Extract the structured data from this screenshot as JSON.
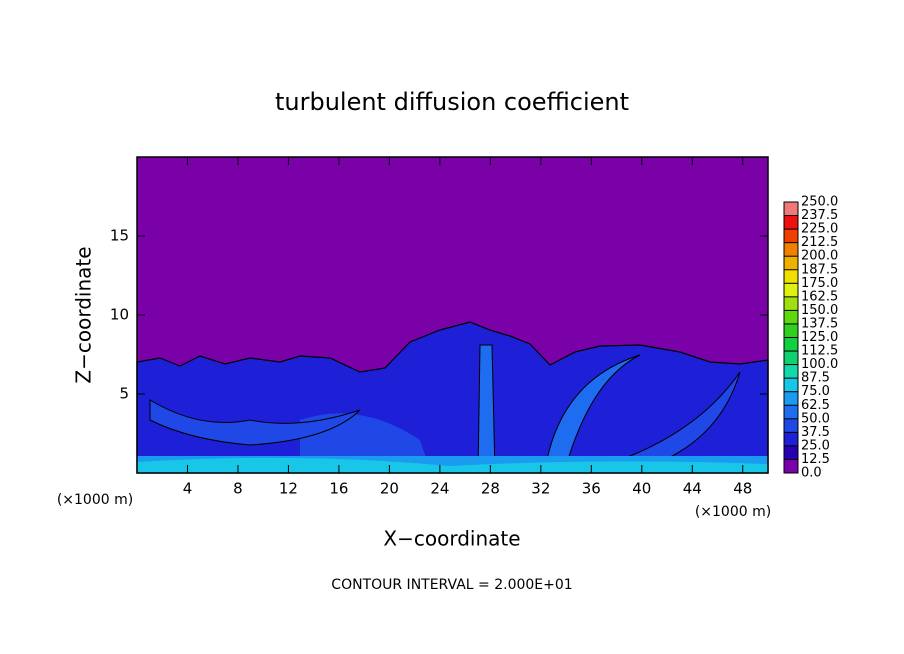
{
  "chart_data": {
    "type": "contour",
    "title": "turbulent diffusion coefficient",
    "xlabel": "X−coordinate",
    "ylabel": "Z−coordinate",
    "x_unit_label": "(×1000 m)",
    "annotation": "CONTOUR INTERVAL = 2.000E+01",
    "xlim": [
      0,
      50
    ],
    "ylim": [
      0,
      20
    ],
    "xticks": [
      4,
      8,
      12,
      16,
      20,
      24,
      28,
      32,
      36,
      40,
      44,
      48
    ],
    "yticks": [
      5,
      10,
      15
    ],
    "colorbar": {
      "ticks": [
        {
          "value": 0,
          "label": "0.0"
        },
        {
          "value": 12.5,
          "label": "12.5"
        },
        {
          "value": 25,
          "label": "25.0"
        },
        {
          "value": 37.5,
          "label": "37.5"
        },
        {
          "value": 50,
          "label": "50.0"
        },
        {
          "value": 62.5,
          "label": "62.5"
        },
        {
          "value": 75,
          "label": "75.0"
        },
        {
          "value": 87.5,
          "label": "87.5"
        },
        {
          "value": 100,
          "label": "100.0"
        },
        {
          "value": 112.5,
          "label": "112.5"
        },
        {
          "value": 125,
          "label": "125.0"
        },
        {
          "value": 137.5,
          "label": "137.5"
        },
        {
          "value": 150,
          "label": "150.0"
        },
        {
          "value": 162.5,
          "label": "162.5"
        },
        {
          "value": 175,
          "label": "175.0"
        },
        {
          "value": 187.5,
          "label": "187.5"
        },
        {
          "value": 200,
          "label": "200.0"
        },
        {
          "value": 212.5,
          "label": "212.5"
        },
        {
          "value": 225,
          "label": "225.0"
        },
        {
          "value": 237.5,
          "label": "237.5"
        },
        {
          "value": 250,
          "label": "250.0"
        }
      ],
      "colors": [
        "#7a00a8",
        "#2800b4",
        "#1e20d8",
        "#1f48e6",
        "#1e6cf0",
        "#1a9af0",
        "#18c6e8",
        "#14d8a8",
        "#10d070",
        "#10d040",
        "#30d020",
        "#60d810",
        "#a0e010",
        "#e0f010",
        "#f0e000",
        "#f0b000",
        "#f08000",
        "#f04000",
        "#f01010",
        "#f07878"
      ]
    }
  }
}
